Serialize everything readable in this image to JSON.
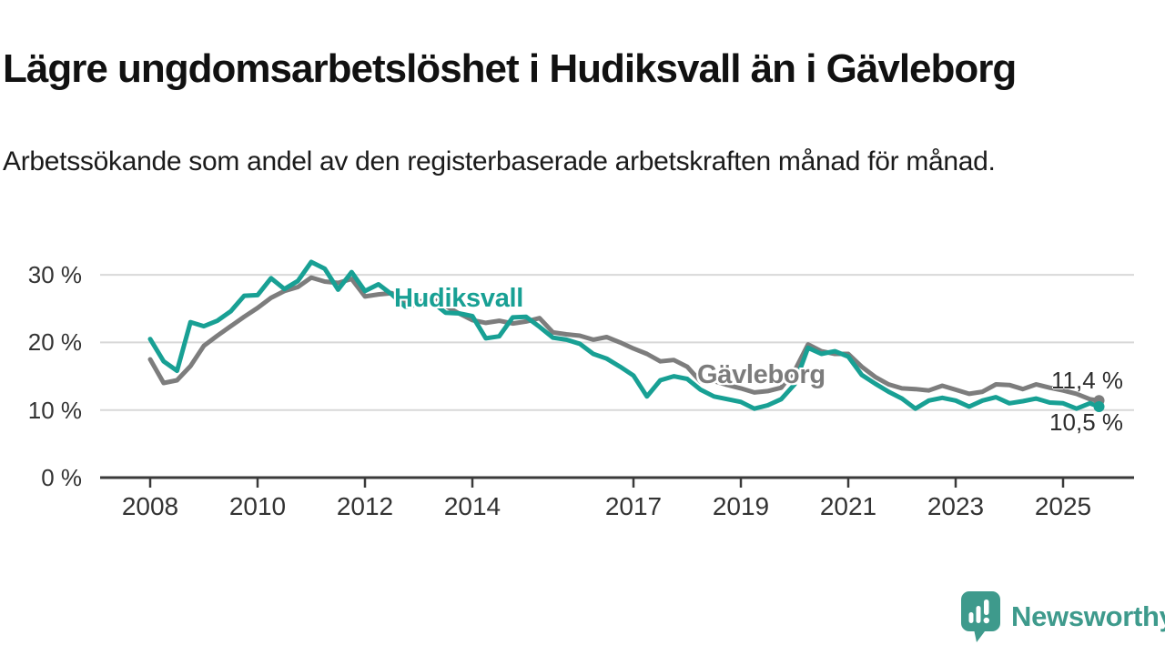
{
  "header": {
    "title": "Lägre ungdomsarbetslöshet i Hudiksvall än i Gävleborg",
    "subtitle": "Arbetssökande som andel av den registerbaserade arbetskraften månad för månad."
  },
  "colors": {
    "hudiksvall_teal": "#18a094",
    "gavleborg_gray": "#7d7d7d",
    "axis": "#3a3a3a",
    "gridline": "#d8d8d8",
    "logo_teal": "#3e9a8c"
  },
  "chart_data": {
    "type": "line",
    "title": "Lägre ungdomsarbetslöshet i Hudiksvall än i Gävleborg",
    "xlabel": "",
    "ylabel": "Arbetssökande som andel av den registerbaserade arbetskraften",
    "ylim": [
      0,
      33
    ],
    "grid": "horizontal",
    "legend_position": "inline-labels",
    "yticks": [
      {
        "value": 0,
        "label": "0 %"
      },
      {
        "value": 10,
        "label": "10 %"
      },
      {
        "value": 20,
        "label": "20 %"
      },
      {
        "value": 30,
        "label": "30 %"
      }
    ],
    "xticks": [
      {
        "value": 2008,
        "label": "2008"
      },
      {
        "value": 2010,
        "label": "2010"
      },
      {
        "value": 2012,
        "label": "2012"
      },
      {
        "value": 2014,
        "label": "2014"
      },
      {
        "value": 2017,
        "label": "2017"
      },
      {
        "value": 2019,
        "label": "2019"
      },
      {
        "value": 2021,
        "label": "2021"
      },
      {
        "value": 2023,
        "label": "2023"
      },
      {
        "value": 2025,
        "label": "2025"
      }
    ],
    "x": [
      2008,
      2008.25,
      2008.5,
      2008.75,
      2009,
      2009.25,
      2009.5,
      2009.75,
      2010,
      2010.25,
      2010.5,
      2010.75,
      2011,
      2011.25,
      2011.5,
      2011.75,
      2012,
      2012.25,
      2012.5,
      2012.75,
      2013,
      2013.25,
      2013.5,
      2013.75,
      2014,
      2014.25,
      2014.5,
      2014.75,
      2015,
      2015.25,
      2015.5,
      2015.75,
      2016,
      2016.25,
      2016.5,
      2016.75,
      2017,
      2017.25,
      2017.5,
      2017.75,
      2018,
      2018.25,
      2018.5,
      2018.75,
      2019,
      2019.25,
      2019.5,
      2019.75,
      2020,
      2020.25,
      2020.5,
      2020.75,
      2021,
      2021.25,
      2021.5,
      2021.75,
      2022,
      2022.25,
      2022.5,
      2022.75,
      2023,
      2023.25,
      2023.5,
      2023.75,
      2024,
      2024.25,
      2024.5,
      2024.75,
      2025,
      2025.25,
      2025.5,
      2025.67
    ],
    "series": [
      {
        "name": "Gävleborg",
        "color": "#7d7d7d",
        "end_label": "11,4 %",
        "end_value": 11.4,
        "values": [
          17.5,
          14.0,
          14.4,
          16.5,
          19.5,
          21.0,
          22.4,
          23.8,
          25.1,
          26.6,
          27.6,
          28.2,
          29.6,
          29.0,
          28.8,
          29.4,
          26.8,
          27.1,
          27.3,
          25.9,
          26.0,
          26.5,
          25.4,
          24.3,
          23.3,
          22.9,
          23.2,
          22.8,
          23.1,
          23.6,
          21.5,
          21.2,
          21.0,
          20.4,
          20.8,
          20.0,
          19.1,
          18.3,
          17.2,
          17.4,
          16.4,
          14.2,
          14.3,
          13.7,
          13.2,
          12.6,
          12.8,
          13.3,
          15.8,
          19.7,
          18.7,
          18.3,
          18.3,
          16.4,
          14.9,
          13.8,
          13.2,
          13.1,
          12.9,
          13.6,
          13.0,
          12.4,
          12.7,
          13.8,
          13.7,
          13.1,
          13.8,
          13.3,
          12.9,
          12.4,
          11.6,
          11.4
        ]
      },
      {
        "name": "Hudiksvall",
        "color": "#18a094",
        "end_label": "10,5 %",
        "end_value": 10.5,
        "values": [
          20.5,
          17.2,
          15.8,
          23.0,
          22.4,
          23.2,
          24.6,
          26.9,
          27.0,
          29.5,
          27.9,
          29.1,
          31.9,
          30.9,
          27.8,
          30.4,
          27.6,
          28.6,
          27.1,
          25.3,
          25.6,
          26.0,
          24.4,
          24.3,
          23.9,
          20.6,
          20.9,
          23.7,
          23.8,
          22.3,
          20.7,
          20.4,
          19.8,
          18.3,
          17.6,
          16.4,
          15.1,
          12.0,
          14.4,
          15.0,
          14.6,
          13.0,
          12.0,
          11.6,
          11.2,
          10.2,
          10.7,
          11.6,
          13.8,
          19.2,
          18.3,
          18.7,
          17.9,
          15.2,
          13.9,
          12.7,
          11.7,
          10.2,
          11.4,
          11.8,
          11.4,
          10.5,
          11.4,
          11.9,
          11.0,
          11.3,
          11.7,
          11.1,
          11.0,
          10.2,
          11.0,
          10.5
        ]
      }
    ]
  },
  "footer": {
    "logo_text": "Newsworthy"
  }
}
